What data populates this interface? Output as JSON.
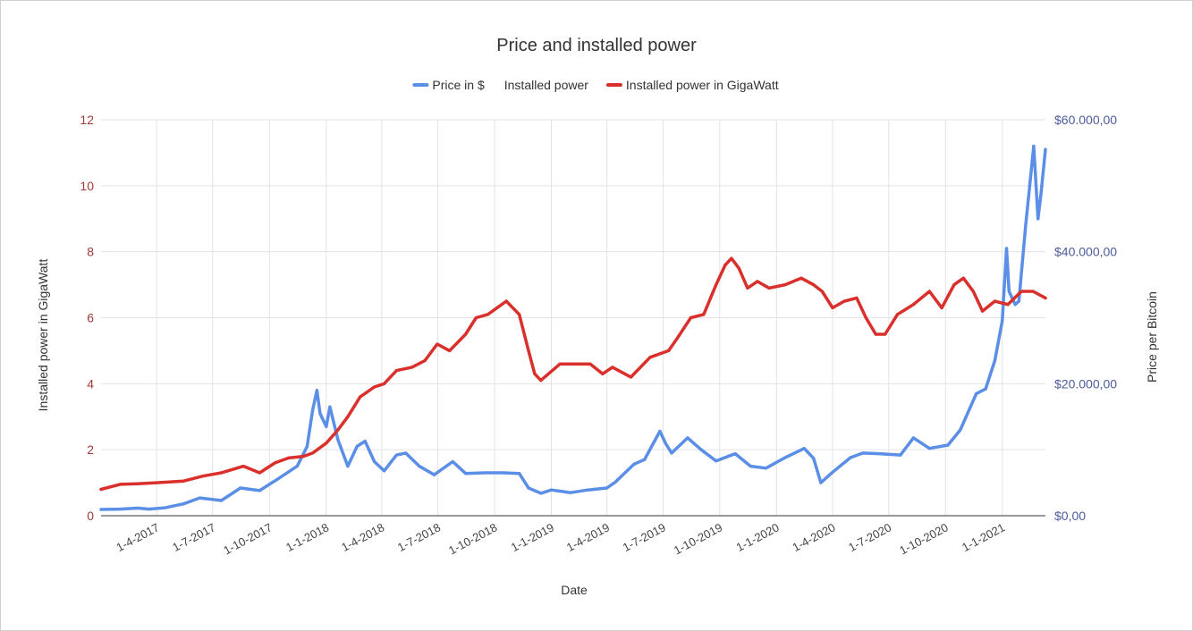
{
  "chart_data": {
    "type": "line",
    "title": "Price and installed power",
    "xlabel": "Date",
    "ylabel_left": "Installed power in GigaWatt",
    "ylabel_right": "Price per Bitcoin",
    "ylim_left": [
      0,
      12
    ],
    "ylim_right": [
      0,
      60000
    ],
    "xlim": [
      "2017-01-01",
      "2021-03-12"
    ],
    "grid": true,
    "legend_position": "top",
    "yticks_left": [
      "0",
      "2",
      "4",
      "6",
      "8",
      "10",
      "12"
    ],
    "yticks_right": [
      "$0,00",
      "$20.000,00",
      "$40.000,00",
      "$60.000,00"
    ],
    "xticks": [
      {
        "label": "1-4-2017",
        "date": "2017-04-01"
      },
      {
        "label": "1-7-2017",
        "date": "2017-07-01"
      },
      {
        "label": "1-10-2017",
        "date": "2017-10-01"
      },
      {
        "label": "1-1-2018",
        "date": "2018-01-01"
      },
      {
        "label": "1-4-2018",
        "date": "2018-04-01"
      },
      {
        "label": "1-7-2018",
        "date": "2018-07-01"
      },
      {
        "label": "1-10-2018",
        "date": "2018-10-01"
      },
      {
        "label": "1-1-2019",
        "date": "2019-01-01"
      },
      {
        "label": "1-4-2019",
        "date": "2019-04-01"
      },
      {
        "label": "1-7-2019",
        "date": "2019-07-01"
      },
      {
        "label": "1-10-2019",
        "date": "2019-10-01"
      },
      {
        "label": "1-1-2020",
        "date": "2020-01-01"
      },
      {
        "label": "1-4-2020",
        "date": "2020-04-01"
      },
      {
        "label": "1-7-2020",
        "date": "2020-07-01"
      },
      {
        "label": "1-10-2020",
        "date": "2020-10-01"
      },
      {
        "label": "1-1-2021",
        "date": "2021-01-01"
      }
    ],
    "legend": [
      {
        "label": "Price in $",
        "color": "#5b8ee6",
        "marker": true
      },
      {
        "label": "Installed power",
        "color": "#ffffff",
        "marker": false
      },
      {
        "label": "Installed power in GigaWatt",
        "color": "#d9302c",
        "marker": true
      }
    ],
    "series": [
      {
        "name": "Price in $",
        "axis": "right",
        "color": "#5b8ee6",
        "points": [
          [
            "2017-01-01",
            950
          ],
          [
            "2017-02-01",
            1000
          ],
          [
            "2017-03-01",
            1150
          ],
          [
            "2017-03-20",
            1000
          ],
          [
            "2017-04-15",
            1200
          ],
          [
            "2017-05-15",
            1800
          ],
          [
            "2017-06-10",
            2700
          ],
          [
            "2017-07-15",
            2300
          ],
          [
            "2017-08-15",
            4200
          ],
          [
            "2017-09-15",
            3800
          ],
          [
            "2017-10-15",
            5600
          ],
          [
            "2017-11-15",
            7500
          ],
          [
            "2017-12-01",
            10500
          ],
          [
            "2017-12-10",
            16000
          ],
          [
            "2017-12-17",
            19000
          ],
          [
            "2017-12-22",
            15500
          ],
          [
            "2018-01-01",
            13500
          ],
          [
            "2018-01-07",
            16500
          ],
          [
            "2018-01-20",
            11500
          ],
          [
            "2018-02-05",
            7500
          ],
          [
            "2018-02-20",
            10500
          ],
          [
            "2018-03-05",
            11300
          ],
          [
            "2018-03-20",
            8200
          ],
          [
            "2018-04-05",
            6800
          ],
          [
            "2018-04-25",
            9200
          ],
          [
            "2018-05-10",
            9500
          ],
          [
            "2018-06-01",
            7500
          ],
          [
            "2018-06-25",
            6200
          ],
          [
            "2018-07-25",
            8200
          ],
          [
            "2018-08-15",
            6400
          ],
          [
            "2018-09-15",
            6500
          ],
          [
            "2018-10-15",
            6500
          ],
          [
            "2018-11-10",
            6400
          ],
          [
            "2018-11-25",
            4200
          ],
          [
            "2018-12-15",
            3400
          ],
          [
            "2019-01-01",
            3900
          ],
          [
            "2019-02-01",
            3500
          ],
          [
            "2019-03-01",
            3900
          ],
          [
            "2019-04-01",
            4200
          ],
          [
            "2019-04-15",
            5100
          ],
          [
            "2019-05-15",
            7800
          ],
          [
            "2019-06-01",
            8500
          ],
          [
            "2019-06-26",
            12800
          ],
          [
            "2019-07-05",
            11000
          ],
          [
            "2019-07-15",
            9500
          ],
          [
            "2019-08-10",
            11800
          ],
          [
            "2019-09-01",
            10000
          ],
          [
            "2019-09-25",
            8300
          ],
          [
            "2019-10-26",
            9400
          ],
          [
            "2019-11-20",
            7500
          ],
          [
            "2019-12-15",
            7200
          ],
          [
            "2020-01-15",
            8800
          ],
          [
            "2020-02-15",
            10200
          ],
          [
            "2020-03-01",
            8700
          ],
          [
            "2020-03-13",
            5000
          ],
          [
            "2020-04-01",
            6600
          ],
          [
            "2020-04-30",
            8800
          ],
          [
            "2020-05-20",
            9500
          ],
          [
            "2020-06-15",
            9400
          ],
          [
            "2020-07-20",
            9200
          ],
          [
            "2020-08-10",
            11800
          ],
          [
            "2020-09-05",
            10200
          ],
          [
            "2020-10-05",
            10700
          ],
          [
            "2020-10-25",
            13000
          ],
          [
            "2020-11-20",
            18500
          ],
          [
            "2020-12-05",
            19200
          ],
          [
            "2020-12-20",
            23500
          ],
          [
            "2021-01-01",
            29500
          ],
          [
            "2021-01-08",
            40500
          ],
          [
            "2021-01-12",
            34000
          ],
          [
            "2021-01-22",
            32000
          ],
          [
            "2021-01-28",
            32500
          ],
          [
            "2021-02-08",
            44000
          ],
          [
            "2021-02-21",
            56000
          ],
          [
            "2021-02-28",
            45000
          ],
          [
            "2021-03-05",
            49000
          ],
          [
            "2021-03-12",
            55500
          ]
        ]
      },
      {
        "name": "Installed power in GigaWatt",
        "axis": "left",
        "color": "#d9302c",
        "points": [
          [
            "2017-01-01",
            0.8
          ],
          [
            "2017-02-01",
            0.95
          ],
          [
            "2017-03-01",
            0.97
          ],
          [
            "2017-04-01",
            1.0
          ],
          [
            "2017-05-15",
            1.05
          ],
          [
            "2017-06-15",
            1.2
          ],
          [
            "2017-07-15",
            1.3
          ],
          [
            "2017-08-20",
            1.5
          ],
          [
            "2017-09-15",
            1.3
          ],
          [
            "2017-10-10",
            1.6
          ],
          [
            "2017-11-01",
            1.75
          ],
          [
            "2017-11-25",
            1.8
          ],
          [
            "2017-12-10",
            1.9
          ],
          [
            "2018-01-01",
            2.2
          ],
          [
            "2018-01-20",
            2.6
          ],
          [
            "2018-02-05",
            3.0
          ],
          [
            "2018-02-25",
            3.6
          ],
          [
            "2018-03-20",
            3.9
          ],
          [
            "2018-04-05",
            4.0
          ],
          [
            "2018-04-25",
            4.4
          ],
          [
            "2018-05-20",
            4.5
          ],
          [
            "2018-06-10",
            4.7
          ],
          [
            "2018-06-30",
            5.2
          ],
          [
            "2018-07-20",
            5.0
          ],
          [
            "2018-08-15",
            5.5
          ],
          [
            "2018-09-01",
            6.0
          ],
          [
            "2018-09-20",
            6.1
          ],
          [
            "2018-10-05",
            6.3
          ],
          [
            "2018-10-20",
            6.5
          ],
          [
            "2018-11-10",
            6.1
          ],
          [
            "2018-11-25",
            5.0
          ],
          [
            "2018-12-05",
            4.3
          ],
          [
            "2018-12-15",
            4.1
          ],
          [
            "2019-01-15",
            4.6
          ],
          [
            "2019-02-15",
            4.6
          ],
          [
            "2019-03-05",
            4.6
          ],
          [
            "2019-03-25",
            4.3
          ],
          [
            "2019-04-10",
            4.5
          ],
          [
            "2019-05-10",
            4.2
          ],
          [
            "2019-06-10",
            4.8
          ],
          [
            "2019-07-10",
            5.0
          ],
          [
            "2019-07-25",
            5.4
          ],
          [
            "2019-08-15",
            6.0
          ],
          [
            "2019-09-05",
            6.1
          ],
          [
            "2019-09-25",
            7.0
          ],
          [
            "2019-10-10",
            7.6
          ],
          [
            "2019-10-20",
            7.8
          ],
          [
            "2019-11-01",
            7.5
          ],
          [
            "2019-11-15",
            6.9
          ],
          [
            "2019-12-01",
            7.1
          ],
          [
            "2019-12-20",
            6.9
          ],
          [
            "2020-01-15",
            7.0
          ],
          [
            "2020-02-10",
            7.2
          ],
          [
            "2020-03-01",
            7.0
          ],
          [
            "2020-03-15",
            6.8
          ],
          [
            "2020-04-01",
            6.3
          ],
          [
            "2020-04-20",
            6.5
          ],
          [
            "2020-05-10",
            6.6
          ],
          [
            "2020-05-25",
            6.0
          ],
          [
            "2020-06-10",
            5.5
          ],
          [
            "2020-06-25",
            5.5
          ],
          [
            "2020-07-15",
            6.1
          ],
          [
            "2020-08-10",
            6.4
          ],
          [
            "2020-09-05",
            6.8
          ],
          [
            "2020-09-25",
            6.3
          ],
          [
            "2020-10-15",
            7.0
          ],
          [
            "2020-10-30",
            7.2
          ],
          [
            "2020-11-15",
            6.8
          ],
          [
            "2020-11-30",
            6.2
          ],
          [
            "2020-12-20",
            6.5
          ],
          [
            "2021-01-10",
            6.4
          ],
          [
            "2021-02-01",
            6.8
          ],
          [
            "2021-02-20",
            6.8
          ],
          [
            "2021-03-12",
            6.6
          ]
        ]
      }
    ]
  }
}
